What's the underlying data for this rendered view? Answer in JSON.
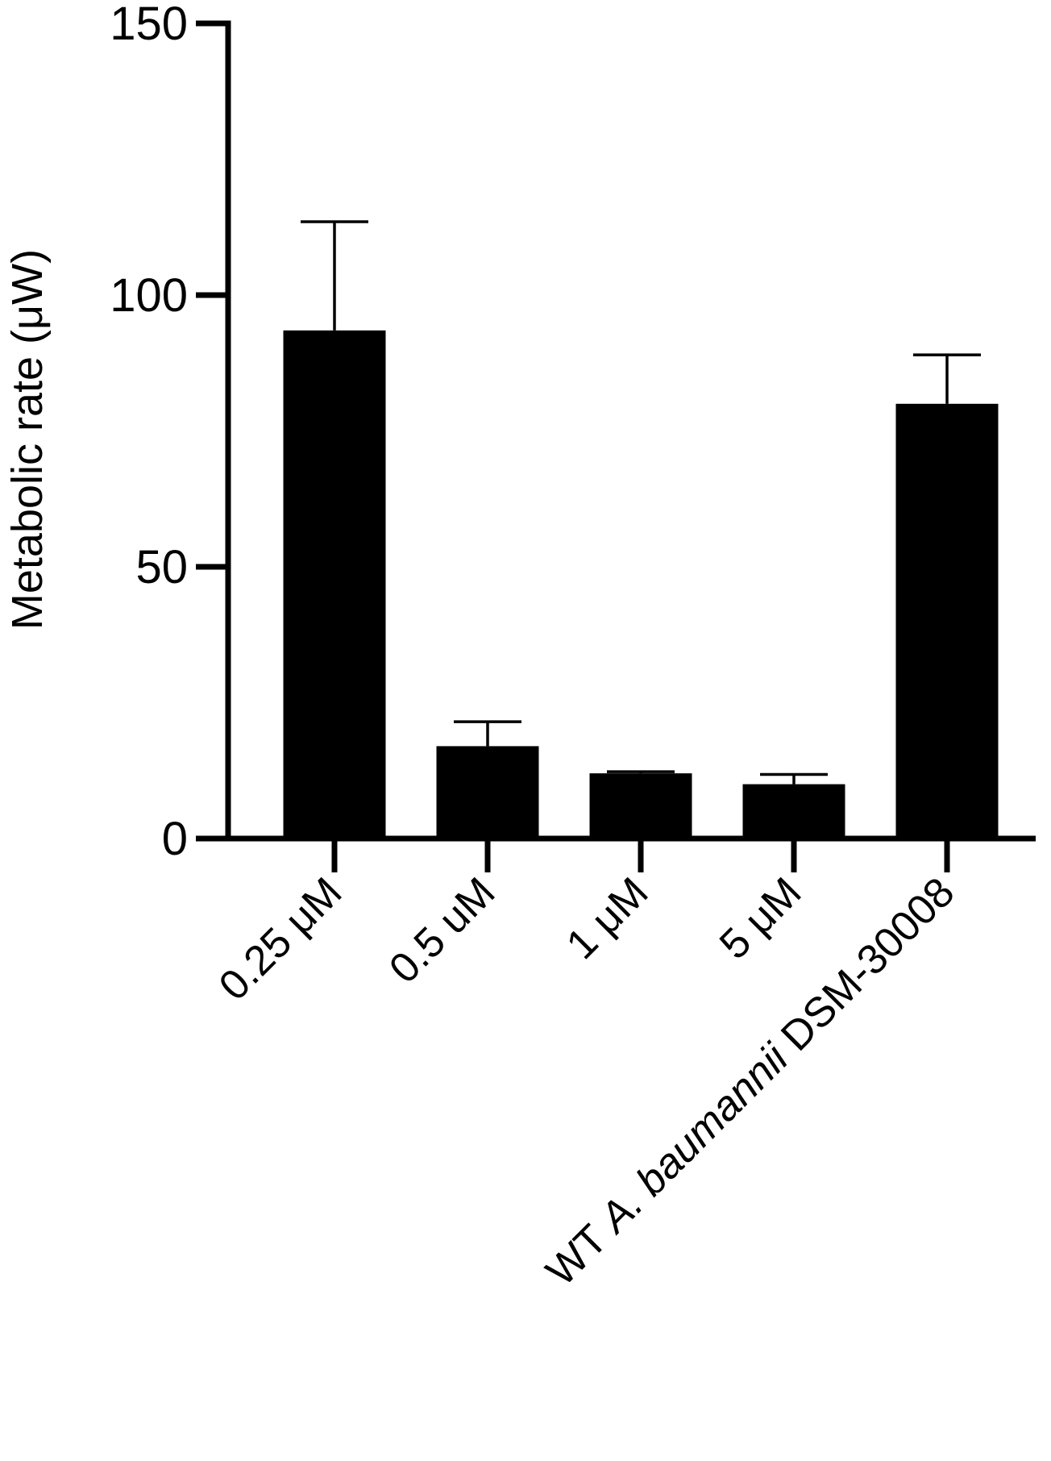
{
  "chart_data": {
    "type": "bar",
    "title": "",
    "xlabel": "",
    "ylabel": "Metabolic rate (μW)",
    "ylim": [
      0,
      150
    ],
    "yticks": [
      0,
      50,
      100,
      150
    ],
    "grid": false,
    "categories": [
      [
        {
          "text": "0.25 μM",
          "italic": false
        }
      ],
      [
        {
          "text": "0.5 uM",
          "italic": false
        }
      ],
      [
        {
          "text": "1 μM",
          "italic": false
        }
      ],
      [
        {
          "text": "5 μM",
          "italic": false
        }
      ],
      [
        {
          "text": "WT ",
          "italic": false
        },
        {
          "text": "A. baumannii",
          "italic": true
        },
        {
          "text": " DSM-30008",
          "italic": false
        }
      ]
    ],
    "values": [
      93.5,
      17,
      12,
      10,
      80
    ],
    "errors": [
      20,
      4.5,
      0.3,
      1.8,
      9
    ],
    "bar_color": "#000000",
    "axis_color": "#000000"
  }
}
